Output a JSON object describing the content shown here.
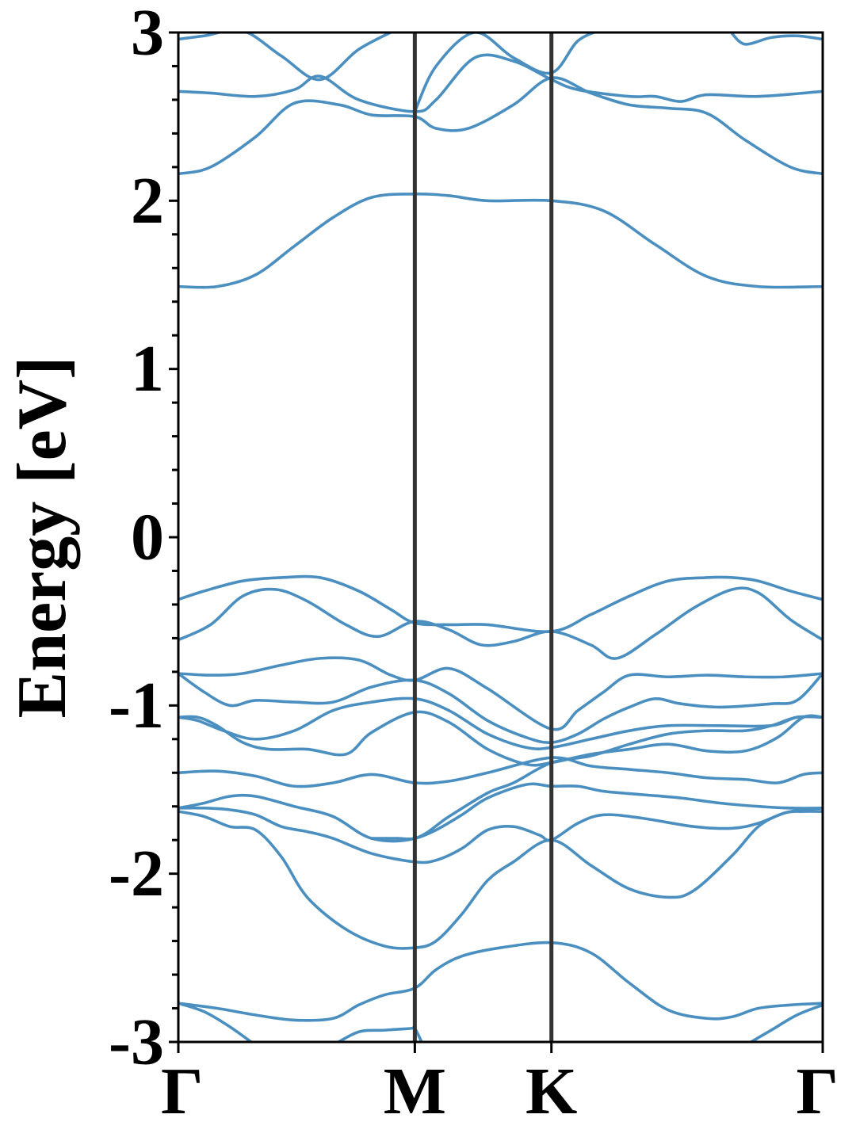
{
  "chart_data": {
    "type": "line",
    "title": "",
    "xlabel": "",
    "ylabel": "Energy [eV]",
    "ylim": [
      -3,
      3
    ],
    "xlim": [
      0,
      1
    ],
    "grid": false,
    "legend": "none",
    "x_ticks": [
      {
        "label": "Γ",
        "x": 0.0
      },
      {
        "label": "M",
        "x": 0.367
      },
      {
        "label": "K",
        "x": 0.579
      },
      {
        "label": "Γ",
        "x": 1.0
      }
    ],
    "y_ticks": [
      {
        "label": "3",
        "value": 3
      },
      {
        "label": "2",
        "value": 2
      },
      {
        "label": "1",
        "value": 1
      },
      {
        "label": "0",
        "value": 0
      },
      {
        "label": "-1",
        "value": -1
      },
      {
        "label": "-2",
        "value": -2
      },
      {
        "label": "-3",
        "value": -3
      }
    ],
    "y_minor_step": 0.2,
    "vlines_at": [
      0.367,
      0.579
    ],
    "colors": {
      "bands": "#4a8fc0",
      "vlines": "#333333",
      "axes": "#000000"
    },
    "series": [
      {
        "x": [
          0,
          0.06,
          0.12,
          0.18,
          0.24,
          0.3,
          0.367,
          0.42,
          0.48,
          0.579,
          0.66,
          0.74,
          0.82,
          0.9,
          1.0
        ],
        "y": [
          1.49,
          1.49,
          1.56,
          1.73,
          1.9,
          2.02,
          2.04,
          2.03,
          2.0,
          2.0,
          1.94,
          1.74,
          1.55,
          1.49,
          1.49
        ]
      },
      {
        "x": [
          0,
          0.05,
          0.12,
          0.18,
          0.25,
          0.3,
          0.367,
          0.4,
          0.45,
          0.52,
          0.579,
          0.64,
          0.7,
          0.76,
          0.82,
          0.88,
          0.95,
          1.0
        ],
        "y": [
          2.16,
          2.2,
          2.38,
          2.58,
          2.57,
          2.51,
          2.5,
          2.43,
          2.43,
          2.57,
          2.73,
          2.64,
          2.57,
          2.55,
          2.52,
          2.36,
          2.2,
          2.16
        ]
      },
      {
        "x": [
          0,
          0.05,
          0.12,
          0.18,
          0.22,
          0.28,
          0.367,
          0.4,
          0.46,
          0.52,
          0.579,
          0.62,
          0.7,
          0.74,
          0.78,
          0.82,
          0.9,
          1.0
        ],
        "y": [
          2.65,
          2.64,
          2.62,
          2.66,
          2.74,
          2.6,
          2.53,
          2.6,
          2.85,
          2.83,
          2.72,
          2.66,
          2.62,
          2.62,
          2.59,
          2.63,
          2.62,
          2.65
        ]
      },
      {
        "x": [
          0,
          0.04,
          0.1,
          0.16,
          0.22,
          0.28,
          0.34
        ],
        "y": [
          2.96,
          2.98,
          3.01,
          2.86,
          2.72,
          2.9,
          3.02
        ]
      },
      {
        "x": [
          0.367,
          0.4,
          0.46,
          0.52,
          0.579,
          0.62,
          0.66
        ],
        "y": [
          2.53,
          2.8,
          3.0,
          2.85,
          2.76,
          2.95,
          3.02
        ]
      },
      {
        "x": [
          0.86,
          0.88,
          0.92,
          0.96,
          1.0
        ],
        "y": [
          2.99,
          2.93,
          2.97,
          2.98,
          2.96
        ]
      },
      {
        "x": [
          0,
          0.04,
          0.1,
          0.16,
          0.22,
          0.28,
          0.33,
          0.367,
          0.42,
          0.48,
          0.579,
          0.64,
          0.7,
          0.76,
          0.82,
          0.86,
          0.9,
          0.95,
          1.0
        ],
        "y": [
          -0.37,
          -0.32,
          -0.26,
          -0.24,
          -0.24,
          -0.32,
          -0.43,
          -0.51,
          -0.52,
          -0.52,
          -0.56,
          -0.46,
          -0.35,
          -0.26,
          -0.24,
          -0.24,
          -0.26,
          -0.32,
          -0.37
        ]
      },
      {
        "x": [
          0,
          0.05,
          0.1,
          0.15,
          0.2,
          0.26,
          0.31,
          0.367,
          0.42,
          0.47,
          0.52,
          0.579,
          0.64,
          0.68,
          0.74,
          0.8,
          0.86,
          0.9,
          0.95,
          1.0
        ],
        "y": [
          -0.61,
          -0.52,
          -0.35,
          -0.31,
          -0.38,
          -0.52,
          -0.59,
          -0.5,
          -0.55,
          -0.64,
          -0.62,
          -0.56,
          -0.64,
          -0.72,
          -0.58,
          -0.42,
          -0.31,
          -0.33,
          -0.49,
          -0.61
        ]
      },
      {
        "x": [
          0,
          0.05,
          0.1,
          0.16,
          0.22,
          0.28,
          0.33,
          0.367,
          0.42,
          0.48,
          0.579,
          0.62,
          0.66,
          0.7,
          0.76,
          0.82,
          0.88,
          0.94,
          1.0
        ],
        "y": [
          -0.81,
          -0.82,
          -0.81,
          -0.76,
          -0.72,
          -0.73,
          -0.82,
          -0.85,
          -0.78,
          -0.9,
          -1.14,
          -1.03,
          -0.92,
          -0.82,
          -0.83,
          -0.82,
          -0.83,
          -0.83,
          -0.81
        ]
      },
      {
        "x": [
          0,
          0.04,
          0.08,
          0.12,
          0.18,
          0.24,
          0.3,
          0.367,
          0.42,
          0.48,
          0.54,
          0.579,
          0.62,
          0.66,
          0.7,
          0.74,
          0.78,
          0.84,
          0.92,
          0.96,
          1.0
        ],
        "y": [
          -0.81,
          -0.92,
          -1.0,
          -0.97,
          -0.98,
          -0.98,
          -0.89,
          -0.85,
          -0.93,
          -1.09,
          -1.19,
          -1.22,
          -1.17,
          -1.08,
          -1.01,
          -0.96,
          -0.99,
          -1.01,
          -0.99,
          -0.97,
          -0.81
        ]
      },
      {
        "x": [
          0,
          0.03,
          0.07,
          0.12,
          0.18,
          0.24,
          0.3,
          0.367,
          0.42,
          0.48,
          0.54,
          0.579,
          0.64,
          0.7,
          0.76,
          0.84,
          0.92,
          0.96,
          1.0
        ],
        "y": [
          -1.07,
          -1.09,
          -1.15,
          -1.2,
          -1.15,
          -1.03,
          -0.98,
          -0.96,
          -1.03,
          -1.17,
          -1.25,
          -1.25,
          -1.2,
          -1.15,
          -1.12,
          -1.12,
          -1.12,
          -1.07,
          -1.07
        ]
      },
      {
        "x": [
          0,
          0.03,
          0.06,
          0.1,
          0.14,
          0.2,
          0.26,
          0.3,
          0.367,
          0.42,
          0.48,
          0.54,
          0.579,
          0.64,
          0.7,
          0.76,
          0.82,
          0.88,
          0.93,
          0.97,
          1.0
        ],
        "y": [
          -1.07,
          -1.07,
          -1.12,
          -1.22,
          -1.26,
          -1.26,
          -1.29,
          -1.16,
          -1.04,
          -1.1,
          -1.26,
          -1.35,
          -1.34,
          -1.29,
          -1.26,
          -1.23,
          -1.27,
          -1.27,
          -1.19,
          -1.07,
          -1.07
        ]
      },
      {
        "x": [
          0,
          0.06,
          0.12,
          0.18,
          0.24,
          0.3,
          0.367,
          0.42,
          0.48,
          0.579,
          0.64,
          0.7,
          0.76,
          0.82,
          0.88,
          0.93,
          0.97,
          1.0
        ],
        "y": [
          -1.4,
          -1.39,
          -1.42,
          -1.48,
          -1.46,
          -1.41,
          -1.46,
          -1.45,
          -1.4,
          -1.31,
          -1.36,
          -1.38,
          -1.4,
          -1.43,
          -1.44,
          -1.46,
          -1.41,
          -1.4
        ]
      },
      {
        "x": [
          0,
          0.04,
          0.08,
          0.12,
          0.18,
          0.24,
          0.3,
          0.367,
          0.42,
          0.48,
          0.52,
          0.579,
          0.64,
          0.7,
          0.76,
          0.82,
          0.88,
          0.92,
          0.96,
          1.0
        ],
        "y": [
          -1.61,
          -1.58,
          -1.54,
          -1.54,
          -1.6,
          -1.66,
          -1.79,
          -1.79,
          -1.66,
          -1.52,
          -1.46,
          -1.34,
          -1.3,
          -1.23,
          -1.17,
          -1.15,
          -1.15,
          -1.12,
          -1.07,
          -1.07
        ]
      },
      {
        "x": [
          0,
          0.04,
          0.08,
          0.12,
          0.16,
          0.2,
          0.24,
          0.3,
          0.367,
          0.4,
          0.44,
          0.48,
          0.52,
          0.56,
          0.579,
          0.62,
          0.66,
          0.72,
          0.8,
          0.86,
          0.9,
          0.94,
          0.97,
          1.0
        ],
        "y": [
          -1.61,
          -1.61,
          -1.62,
          -1.65,
          -1.72,
          -1.75,
          -1.79,
          -1.88,
          -1.93,
          -1.92,
          -1.85,
          -1.74,
          -1.72,
          -1.77,
          -1.8,
          -1.7,
          -1.65,
          -1.67,
          -1.72,
          -1.73,
          -1.7,
          -1.64,
          -1.62,
          -1.61
        ]
      },
      {
        "x": [
          0,
          0.04,
          0.08,
          0.12,
          0.16,
          0.2,
          0.26,
          0.32,
          0.367,
          0.4,
          0.44,
          0.48,
          0.52,
          0.579,
          0.64,
          0.7,
          0.76,
          0.8,
          0.86,
          0.9,
          0.94,
          0.97,
          1.0
        ],
        "y": [
          -1.63,
          -1.66,
          -1.72,
          -1.74,
          -1.9,
          -2.14,
          -2.33,
          -2.43,
          -2.44,
          -2.4,
          -2.24,
          -2.04,
          -1.93,
          -1.8,
          -1.95,
          -2.09,
          -2.14,
          -2.1,
          -1.89,
          -1.72,
          -1.64,
          -1.63,
          -1.63
        ]
      },
      {
        "x": [
          0.3,
          0.34,
          0.367,
          0.4,
          0.44,
          0.48,
          0.54,
          0.579,
          0.62,
          0.66,
          0.72,
          0.78,
          0.84,
          0.9,
          0.95,
          1.0
        ],
        "y": [
          -1.79,
          -1.79,
          -1.79,
          -1.74,
          -1.65,
          -1.55,
          -1.47,
          -1.48,
          -1.48,
          -1.51,
          -1.53,
          -1.55,
          -1.58,
          -1.6,
          -1.61,
          -1.61
        ]
      },
      {
        "x": [
          0,
          0.06,
          0.12,
          0.18,
          0.24,
          0.28,
          0.32,
          0.367,
          0.4,
          0.44,
          0.5,
          0.579,
          0.64,
          0.7,
          0.76,
          0.82,
          0.86,
          0.9,
          0.95,
          1.0
        ],
        "y": [
          -2.77,
          -2.8,
          -2.84,
          -2.87,
          -2.86,
          -2.78,
          -2.72,
          -2.68,
          -2.57,
          -2.49,
          -2.44,
          -2.41,
          -2.47,
          -2.65,
          -2.81,
          -2.86,
          -2.85,
          -2.8,
          -2.78,
          -2.77
        ]
      },
      {
        "x": [
          0,
          0.04,
          0.08,
          0.12
        ],
        "y": [
          -2.77,
          -2.82,
          -2.91,
          -3.02
        ]
      },
      {
        "x": [
          0.24,
          0.28,
          0.32,
          0.36,
          0.367,
          0.38
        ],
        "y": [
          -3.02,
          -2.94,
          -2.93,
          -2.92,
          -2.92,
          -3.02
        ]
      },
      {
        "x": [
          0.88,
          0.92,
          0.96,
          1.0
        ],
        "y": [
          -3.02,
          -2.93,
          -2.84,
          -2.78
        ]
      }
    ]
  }
}
